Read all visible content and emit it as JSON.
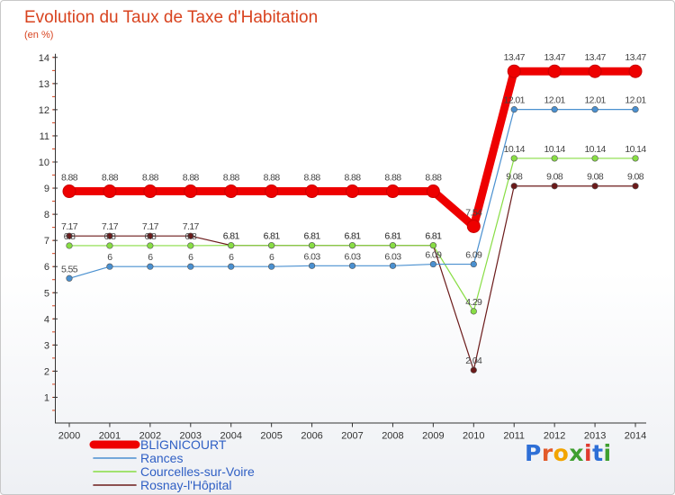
{
  "chart_data": {
    "type": "line",
    "title": "Evolution du Taux de Taxe d'Habitation",
    "subtitle": "(en %)",
    "categories": [
      "2000",
      "2001",
      "2002",
      "2003",
      "2004",
      "2005",
      "2006",
      "2007",
      "2008",
      "2009",
      "2010",
      "2011",
      "2012",
      "2013",
      "2014"
    ],
    "ylim": [
      0,
      14
    ],
    "yticks": [
      1,
      2,
      3,
      4,
      5,
      6,
      7,
      8,
      9,
      10,
      11,
      12,
      13,
      14
    ],
    "grid": false,
    "legend_position": "bottom-left",
    "series": [
      {
        "name": "BLIGNICOURT",
        "color": "#ee0000",
        "values": [
          8.88,
          8.88,
          8.88,
          8.88,
          8.88,
          8.88,
          8.88,
          8.88,
          8.88,
          8.88,
          7.54,
          13.47,
          13.47,
          13.47,
          13.47
        ],
        "labels": [
          "8.88",
          "8.88",
          "8.88",
          "8.88",
          "8.88",
          "8.88",
          "8.88",
          "8.88",
          "8.88",
          "8.88",
          "7.54",
          "13.47",
          "13.47",
          "13.47",
          "13.47"
        ]
      },
      {
        "name": "Rances",
        "color": "#4a90d0",
        "values": [
          5.55,
          6,
          6,
          6,
          6,
          6,
          6.03,
          6.03,
          6.03,
          6.09,
          6.09,
          12.01,
          12.01,
          12.01,
          12.01
        ],
        "labels": [
          "5.55",
          "6",
          "6",
          "6",
          "6",
          "6",
          "6.03",
          "6.03",
          "6.03",
          "6.09",
          "6.09",
          "12.01",
          "12.01",
          "12.01",
          "12.01"
        ]
      },
      {
        "name": "Courcelles-sur-Voire",
        "color": "#88dd44",
        "values": [
          6.8,
          6.8,
          6.8,
          6.8,
          6.81,
          6.81,
          6.81,
          6.81,
          6.81,
          6.81,
          4.29,
          10.14,
          10.14,
          10.14,
          10.14
        ],
        "labels": [
          "6.8",
          "6.8",
          "6.8",
          "6.8",
          "6.81",
          "6.81",
          "6.81",
          "6.81",
          "6.81",
          "6.81",
          "4.29",
          "10.14",
          "10.14",
          "10.14",
          "10.14"
        ]
      },
      {
        "name": "Rosnay-l'Hôpital",
        "color": "#6b1a1a",
        "values": [
          7.17,
          7.17,
          7.17,
          7.17,
          6.81,
          6.81,
          6.81,
          6.81,
          6.81,
          6.81,
          2.04,
          9.08,
          9.08,
          9.08,
          9.08
        ],
        "labels": [
          "7.17",
          "7.17",
          "7.17",
          "7.17",
          "6.81",
          "6.81",
          "6.81",
          "6.81",
          "6.81",
          "6.81",
          "2.04",
          "9.08",
          "9.08",
          "9.08",
          "9.08"
        ]
      }
    ]
  },
  "logo": {
    "text": "Proxiti"
  }
}
